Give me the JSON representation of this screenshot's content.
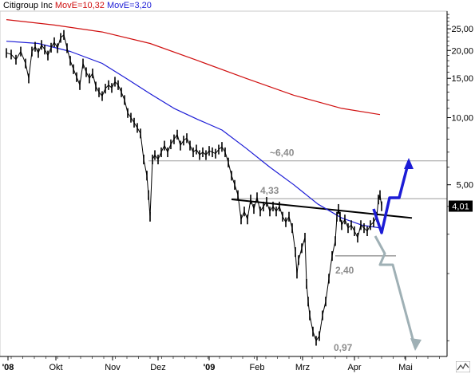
{
  "legend": {
    "ticker": "Citigroup Inc",
    "ma1_label": "MovE=10,32",
    "ma2_label": "MovE=3,20"
  },
  "colors": {
    "price": "#000000",
    "ma_long": "#d01010",
    "ma_short": "#1c1cd6",
    "forecast_up": "#1c1cd6",
    "forecast_down": "#9fb0b5",
    "level_line": "#9a9a9a",
    "trend_line": "#000000",
    "annotation": "#8c8c8c"
  },
  "chart_data": {
    "type": "line",
    "title": "",
    "xlabel": "",
    "ylabel": "",
    "y_scale": "log",
    "ylim": [
      0.85,
      30
    ],
    "x_ticks": [
      "'08",
      "Okt",
      "Nov",
      "Dez",
      "'09",
      "Feb",
      "Mrz",
      "Apr",
      "Mai"
    ],
    "y_ticks": [
      "25,00",
      "20,00",
      "15,00",
      "10,00",
      "5,00"
    ],
    "last_price_label": "4,01",
    "series": [
      {
        "values": [
          [
            0,
            19.5
          ],
          [
            6,
            19.2
          ],
          [
            12,
            18.2
          ],
          [
            18,
            19.8
          ],
          [
            24,
            17.5
          ],
          [
            28,
            15.0
          ],
          [
            32,
            19.8
          ],
          [
            36,
            20.8
          ],
          [
            40,
            19.5
          ],
          [
            44,
            21.2
          ],
          [
            48,
            20.2
          ],
          [
            52,
            19.0
          ],
          [
            56,
            20.6
          ],
          [
            60,
            21.8
          ],
          [
            64,
            20.5
          ],
          [
            68,
            22.8
          ],
          [
            72,
            23.5
          ],
          [
            76,
            20.5
          ],
          [
            80,
            18.0
          ],
          [
            84,
            16.5
          ],
          [
            88,
            15.2
          ],
          [
            92,
            14.0
          ],
          [
            96,
            17.5
          ],
          [
            100,
            16.0
          ],
          [
            104,
            15.0
          ],
          [
            108,
            15.8
          ],
          [
            112,
            13.8
          ],
          [
            116,
            13.0
          ],
          [
            120,
            12.5
          ],
          [
            124,
            13.5
          ],
          [
            128,
            14.0
          ],
          [
            132,
            13.6
          ],
          [
            136,
            14.5
          ],
          [
            140,
            14.0
          ],
          [
            144,
            13.0
          ],
          [
            148,
            12.0
          ],
          [
            152,
            10.5
          ],
          [
            156,
            10.0
          ],
          [
            160,
            9.5
          ],
          [
            164,
            9.0
          ],
          [
            168,
            8.5
          ],
          [
            172,
            6.5
          ],
          [
            176,
            5.5
          ],
          [
            178,
            4.5
          ],
          [
            180,
            3.6
          ],
          [
            183,
            6.5
          ],
          [
            186,
            6.8
          ],
          [
            190,
            6.5
          ],
          [
            194,
            7.0
          ],
          [
            198,
            7.5
          ],
          [
            202,
            7.0
          ],
          [
            206,
            7.6
          ],
          [
            210,
            8.0
          ],
          [
            214,
            8.4
          ],
          [
            218,
            7.5
          ],
          [
            222,
            7.9
          ],
          [
            226,
            8.1
          ],
          [
            230,
            7.5
          ],
          [
            234,
            7.0
          ],
          [
            238,
            7.2
          ],
          [
            242,
            6.8
          ],
          [
            246,
            7.0
          ],
          [
            250,
            6.8
          ],
          [
            254,
            7.1
          ],
          [
            258,
            7.0
          ],
          [
            262,
            6.9
          ],
          [
            266,
            7.2
          ],
          [
            270,
            7.4
          ],
          [
            274,
            7.0
          ],
          [
            278,
            6.3
          ],
          [
            282,
            5.5
          ],
          [
            286,
            5.0
          ],
          [
            290,
            4.5
          ],
          [
            294,
            3.5
          ],
          [
            298,
            3.8
          ],
          [
            302,
            3.5
          ],
          [
            306,
            4.3
          ],
          [
            310,
            3.9
          ],
          [
            314,
            4.4
          ],
          [
            318,
            3.8
          ],
          [
            322,
            4.0
          ],
          [
            326,
            4.2
          ],
          [
            330,
            3.8
          ],
          [
            334,
            4.0
          ],
          [
            338,
            3.8
          ],
          [
            342,
            4.0
          ],
          [
            346,
            3.6
          ],
          [
            350,
            3.4
          ],
          [
            354,
            3.6
          ],
          [
            358,
            3.2
          ],
          [
            362,
            2.5
          ],
          [
            364,
            2.0
          ],
          [
            366,
            2.3
          ],
          [
            370,
            2.6
          ],
          [
            374,
            2.9
          ],
          [
            376,
            1.8
          ],
          [
            378,
            1.5
          ],
          [
            380,
            1.3
          ],
          [
            384,
            1.1
          ],
          [
            388,
            1.0
          ],
          [
            392,
            1.05
          ],
          [
            396,
            1.3
          ],
          [
            400,
            1.5
          ],
          [
            404,
            1.9
          ],
          [
            408,
            2.4
          ],
          [
            412,
            2.8
          ],
          [
            414,
            3.6
          ],
          [
            416,
            3.9
          ],
          [
            418,
            3.6
          ],
          [
            420,
            3.3
          ],
          [
            424,
            3.5
          ],
          [
            428,
            3.2
          ],
          [
            432,
            3.3
          ],
          [
            436,
            3.1
          ],
          [
            440,
            2.9
          ],
          [
            444,
            3.3
          ],
          [
            448,
            3.2
          ],
          [
            452,
            3.1
          ],
          [
            456,
            3.3
          ],
          [
            460,
            3.4
          ],
          [
            464,
            3.6
          ],
          [
            466,
            4.3
          ],
          [
            468,
            4.5
          ],
          [
            470,
            4.01
          ]
        ]
      },
      {
        "values": [
          [
            0,
            27.5
          ],
          [
            60,
            26.0
          ],
          [
            120,
            24.2
          ],
          [
            180,
            21.5
          ],
          [
            240,
            18.0
          ],
          [
            300,
            15.0
          ],
          [
            360,
            12.6
          ],
          [
            420,
            11.0
          ],
          [
            468,
            10.32
          ]
        ]
      },
      {
        "values": [
          [
            0,
            22.0
          ],
          [
            40,
            21.5
          ],
          [
            80,
            19.8
          ],
          [
            120,
            17.5
          ],
          [
            150,
            15.0
          ],
          [
            180,
            12.8
          ],
          [
            210,
            11.0
          ],
          [
            240,
            9.8
          ],
          [
            270,
            8.8
          ],
          [
            300,
            7.3
          ],
          [
            330,
            6.0
          ],
          [
            360,
            5.0
          ],
          [
            390,
            4.1
          ],
          [
            420,
            3.55
          ],
          [
            445,
            3.3
          ],
          [
            468,
            3.2
          ]
        ]
      }
    ],
    "annotations": [
      {
        "label": "~6,40",
        "value": 6.4
      },
      {
        "label": "4,33",
        "value": 4.33
      },
      {
        "label": "2,40",
        "value": 2.4
      },
      {
        "label": "0,97",
        "value": 0.97
      }
    ]
  }
}
